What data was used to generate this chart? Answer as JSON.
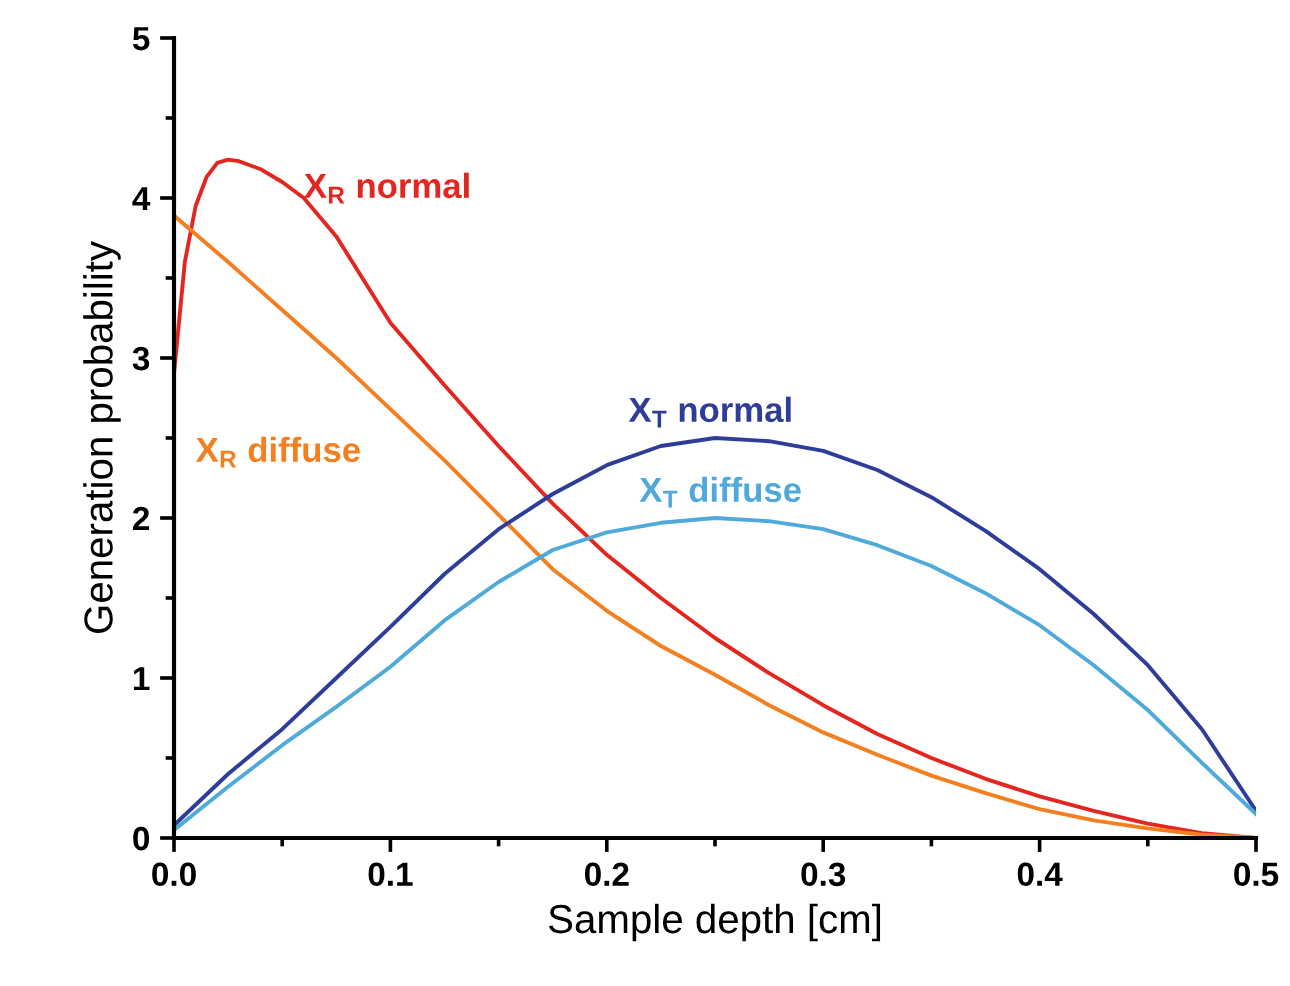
{
  "chart_data": {
    "type": "line",
    "xlabel": "Sample depth [cm]",
    "ylabel": "Generation probability",
    "xlim": [
      0,
      0.5
    ],
    "ylim": [
      0,
      5
    ],
    "xticks": [
      {
        "value": 0,
        "label": "0.0"
      },
      0.1,
      0.2,
      0.3,
      0.4,
      0.5
    ],
    "yticks": [
      0,
      1,
      2,
      3,
      4,
      5
    ],
    "grid": false,
    "legend": false,
    "marker": "none",
    "line_style": "solid",
    "series": [
      {
        "name": "X$_{R}$ normal",
        "color": "#e3261f",
        "x": [
          0,
          0.005,
          0.01,
          0.015,
          0.02,
          0.025,
          0.03,
          0.04,
          0.05,
          0.06,
          0.075,
          0.1,
          0.125,
          0.15,
          0.175,
          0.2,
          0.225,
          0.25,
          0.275,
          0.3,
          0.325,
          0.35,
          0.375,
          0.4,
          0.425,
          0.45,
          0.475,
          0.5
        ],
        "values": [
          2.9,
          3.6,
          3.95,
          4.13,
          4.22,
          4.24,
          4.23,
          4.18,
          4.1,
          4.0,
          3.76,
          3.22,
          2.83,
          2.45,
          2.09,
          1.77,
          1.5,
          1.25,
          1.03,
          0.83,
          0.65,
          0.5,
          0.37,
          0.26,
          0.17,
          0.09,
          0.03,
          0
        ]
      },
      {
        "name": "X$_{R}$ diffuse",
        "color": "#f47f20",
        "x": [
          0,
          0.025,
          0.05,
          0.075,
          0.1,
          0.125,
          0.15,
          0.175,
          0.2,
          0.225,
          0.25,
          0.275,
          0.3,
          0.325,
          0.35,
          0.375,
          0.4,
          0.425,
          0.45,
          0.475,
          0.5
        ],
        "values": [
          3.89,
          3.6,
          3.3,
          3.0,
          2.68,
          2.36,
          2.02,
          1.68,
          1.42,
          1.2,
          1.02,
          0.83,
          0.66,
          0.52,
          0.39,
          0.28,
          0.18,
          0.11,
          0.06,
          0.02,
          0
        ]
      },
      {
        "name": "X$_{T}$ normal",
        "color": "#2e3d98",
        "x": [
          0,
          0.025,
          0.05,
          0.075,
          0.1,
          0.125,
          0.15,
          0.175,
          0.2,
          0.225,
          0.25,
          0.275,
          0.3,
          0.325,
          0.35,
          0.375,
          0.4,
          0.425,
          0.45,
          0.475,
          0.5
        ],
        "values": [
          0.08,
          0.4,
          0.68,
          1.0,
          1.32,
          1.65,
          1.93,
          2.15,
          2.33,
          2.45,
          2.5,
          2.48,
          2.42,
          2.3,
          2.13,
          1.92,
          1.68,
          1.4,
          1.08,
          0.68,
          0.17
        ]
      },
      {
        "name": "X$_{T}$ diffuse",
        "color": "#4fa9d9",
        "x": [
          0,
          0.025,
          0.05,
          0.075,
          0.1,
          0.125,
          0.15,
          0.175,
          0.2,
          0.225,
          0.25,
          0.275,
          0.3,
          0.325,
          0.35,
          0.375,
          0.4,
          0.425,
          0.45,
          0.475,
          0.5
        ],
        "values": [
          0.05,
          0.32,
          0.58,
          0.82,
          1.07,
          1.36,
          1.6,
          1.8,
          1.91,
          1.97,
          2.0,
          1.98,
          1.93,
          1.83,
          1.7,
          1.53,
          1.33,
          1.08,
          0.8,
          0.47,
          0.15
        ]
      }
    ]
  }
}
